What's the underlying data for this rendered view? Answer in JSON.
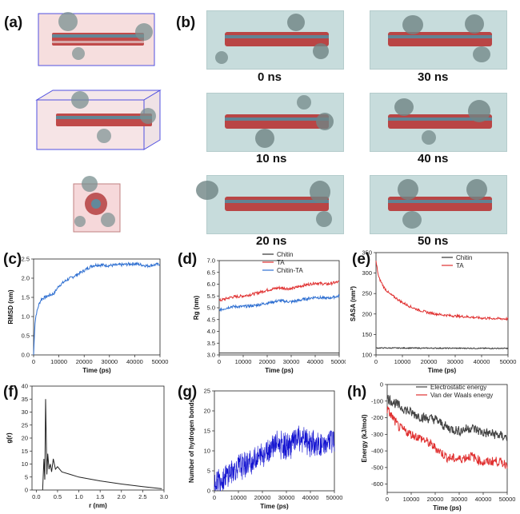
{
  "panels": {
    "a": "(a)",
    "b": "(b)",
    "c": "(c)",
    "d": "(d)",
    "e": "(e)",
    "f": "(f)",
    "g": "(g)",
    "h": "(h)"
  },
  "snapshots": [
    "0 ns",
    "30 ns",
    "10 ns",
    "40 ns",
    "20 ns",
    "50 ns"
  ],
  "colors": {
    "chitin": "#333333",
    "ta": "#e03030",
    "chitin_ta": "#2e6fd1",
    "rmsd": "#2e6fd1",
    "hbond": "#1010d0",
    "electro": "#444444",
    "vdw": "#e03030",
    "water": "#c7dcdc",
    "box": "#4040e0"
  },
  "chart_data": [
    {
      "id": "c",
      "type": "line",
      "xlabel": "Time (ps)",
      "ylabel": "RMSD (nm)",
      "xlim": [
        0,
        50000
      ],
      "ylim": [
        0,
        2.5
      ],
      "xticks": [
        "0",
        "10000",
        "20000",
        "30000",
        "40000",
        "50000"
      ],
      "yticks": [
        "0.0",
        "0.5",
        "1.0",
        "1.5",
        "2.0",
        "2.5"
      ],
      "series": [
        {
          "name": "RMSD",
          "x": [
            0,
            500,
            1000,
            2000,
            3000,
            5000,
            8000,
            10000,
            13000,
            16000,
            20000,
            23000,
            25000,
            30000,
            35000,
            40000,
            45000,
            50000
          ],
          "y": [
            0.0,
            0.8,
            1.05,
            1.3,
            1.45,
            1.52,
            1.6,
            1.8,
            1.95,
            2.05,
            2.2,
            2.32,
            2.35,
            2.33,
            2.35,
            2.38,
            2.32,
            2.37
          ]
        }
      ]
    },
    {
      "id": "d",
      "type": "line",
      "xlabel": "Time (ps)",
      "ylabel": "Rg (nm)",
      "xlim": [
        0,
        50000
      ],
      "ylim": [
        3.0,
        7.0
      ],
      "xticks": [
        "0",
        "10000",
        "20000",
        "30000",
        "40000",
        "50000"
      ],
      "yticks": [
        "3.0",
        "3.5",
        "4.0",
        "4.5",
        "5.0",
        "5.5",
        "6.0",
        "6.5",
        "7.0"
      ],
      "legend": [
        "Chitin",
        "TA",
        "Chitin-TA"
      ],
      "series": [
        {
          "name": "Chitin",
          "x": [
            0,
            50000
          ],
          "y": [
            3.08,
            3.08
          ]
        },
        {
          "name": "TA",
          "x": [
            0,
            5000,
            10000,
            15000,
            20000,
            25000,
            30000,
            35000,
            40000,
            45000,
            50000
          ],
          "y": [
            5.3,
            5.45,
            5.5,
            5.6,
            5.75,
            5.85,
            5.8,
            5.95,
            6.05,
            6.0,
            6.1
          ]
        },
        {
          "name": "Chitin-TA",
          "x": [
            0,
            5000,
            10000,
            15000,
            20000,
            25000,
            30000,
            35000,
            40000,
            45000,
            50000
          ],
          "y": [
            4.9,
            5.05,
            5.05,
            5.1,
            5.2,
            5.3,
            5.25,
            5.35,
            5.45,
            5.4,
            5.5
          ]
        }
      ]
    },
    {
      "id": "e",
      "type": "line",
      "xlabel": "Time (ps)",
      "ylabel": "SASA (nm²)",
      "xlim": [
        0,
        50000
      ],
      "ylim": [
        100,
        350
      ],
      "xticks": [
        "0",
        "10000",
        "20000",
        "30000",
        "40000",
        "50000"
      ],
      "yticks": [
        "100",
        "150",
        "200",
        "250",
        "300",
        "350"
      ],
      "legend": [
        "Chitin",
        "TA"
      ],
      "series": [
        {
          "name": "Chitin",
          "x": [
            0,
            50000
          ],
          "y": [
            117,
            116
          ]
        },
        {
          "name": "TA",
          "x": [
            0,
            1000,
            3000,
            5000,
            8000,
            10000,
            13000,
            16000,
            20000,
            25000,
            30000,
            35000,
            40000,
            45000,
            50000
          ],
          "y": [
            328,
            290,
            265,
            250,
            237,
            228,
            218,
            210,
            203,
            198,
            195,
            193,
            190,
            189,
            188
          ]
        }
      ]
    },
    {
      "id": "f",
      "type": "line",
      "xlabel": "r (nm)",
      "ylabel": "g(r)",
      "xlim": [
        -0.1,
        3.0
      ],
      "ylim": [
        0,
        40
      ],
      "xticks": [
        "0.0",
        "0.5",
        "1.0",
        "1.5",
        "2.0",
        "2.5",
        "3.0"
      ],
      "yticks": [
        "0",
        "5",
        "10",
        "15",
        "20",
        "25",
        "30",
        "35",
        "40"
      ],
      "series": [
        {
          "name": "g(r)",
          "x": [
            0.15,
            0.18,
            0.2,
            0.22,
            0.25,
            0.27,
            0.3,
            0.33,
            0.36,
            0.4,
            0.45,
            0.5,
            0.6,
            0.8,
            1.0,
            1.5,
            2.0,
            2.5,
            2.95
          ],
          "y": [
            0,
            12,
            4,
            35,
            6,
            14,
            8,
            10,
            7,
            12,
            8,
            9,
            7,
            6,
            5,
            3.5,
            2.3,
            1.3,
            0.5
          ]
        }
      ]
    },
    {
      "id": "g",
      "type": "line",
      "xlabel": "Time (ps)",
      "ylabel": "Number of hydrogen bonds",
      "xlim": [
        0,
        50000
      ],
      "ylim": [
        0,
        25
      ],
      "xticks": [
        "0",
        "10000",
        "20000",
        "30000",
        "40000",
        "50000"
      ],
      "yticks": [
        "0",
        "5",
        "10",
        "15",
        "20",
        "25"
      ],
      "series": [
        {
          "name": "H-bonds",
          "x": [
            0,
            5000,
            10000,
            15000,
            20000,
            25000,
            30000,
            35000,
            40000,
            45000,
            50000
          ],
          "y": [
            2,
            4,
            6,
            7,
            9,
            12,
            11,
            13,
            12,
            11,
            13
          ]
        }
      ]
    },
    {
      "id": "h",
      "type": "line",
      "xlabel": "Time (ps)",
      "ylabel": "Energy (kJ/mol)",
      "xlim": [
        0,
        50000
      ],
      "ylim": [
        -650,
        0
      ],
      "xticks": [
        "0",
        "10000",
        "20000",
        "30000",
        "40000",
        "50000"
      ],
      "yticks": [
        "0",
        "-100",
        "-200",
        "-300",
        "-400",
        "-500",
        "-600"
      ],
      "legend": [
        "Electrostatic energy",
        "Van der Waals energy"
      ],
      "series": [
        {
          "name": "Electrostatic energy",
          "x": [
            0,
            5000,
            10000,
            15000,
            20000,
            25000,
            30000,
            35000,
            40000,
            45000,
            50000
          ],
          "y": [
            -80,
            -130,
            -170,
            -200,
            -210,
            -260,
            -280,
            -260,
            -290,
            -300,
            -320
          ]
        },
        {
          "name": "Van der Waals energy",
          "x": [
            0,
            5000,
            10000,
            15000,
            20000,
            25000,
            30000,
            35000,
            40000,
            45000,
            50000
          ],
          "y": [
            -150,
            -260,
            -300,
            -330,
            -380,
            -440,
            -450,
            -430,
            -470,
            -460,
            -480
          ]
        }
      ]
    }
  ]
}
